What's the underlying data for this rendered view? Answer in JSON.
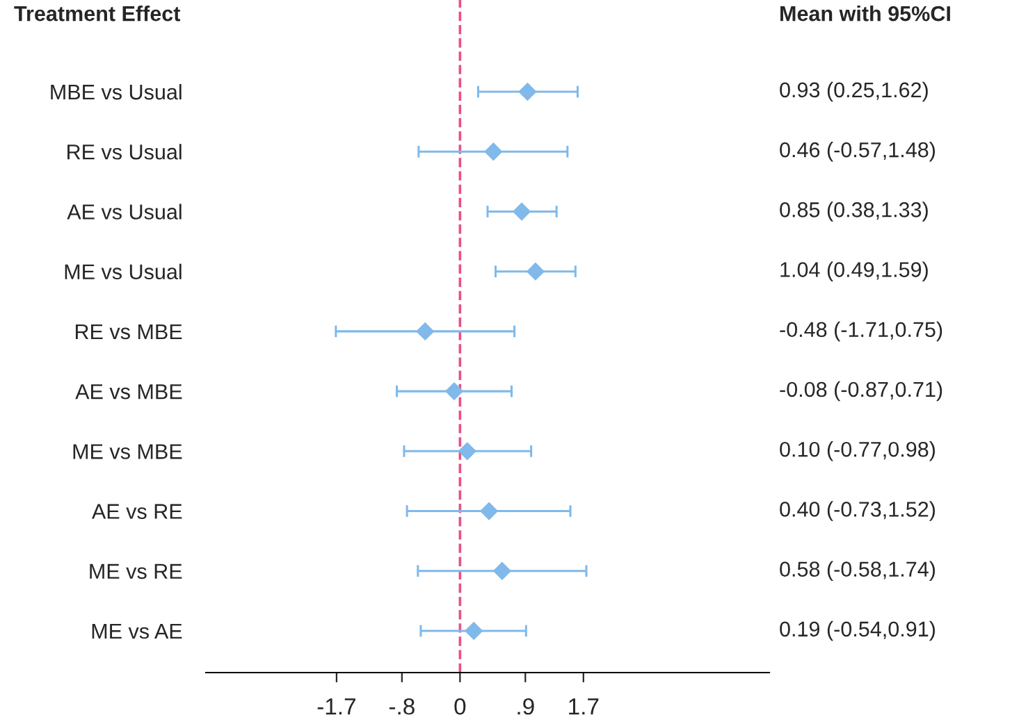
{
  "chart_data": {
    "type": "scatter",
    "ylabel": "Treatment Effect",
    "annotations": [
      "Mean with 95%CI"
    ],
    "categories": [
      "MBE vs Usual",
      "RE vs Usual",
      "AE vs Usual",
      "ME vs Usual",
      "RE vs MBE",
      "AE vs MBE",
      "ME vs MBE",
      "AE vs RE",
      "ME vs RE",
      "ME vs AE"
    ],
    "orientation": "horizontal",
    "series": [
      {
        "color": "#80b9ea",
        "values": [
          0.93,
          0.46,
          0.85,
          1.04,
          -0.48,
          -0.08,
          0.1,
          0.4,
          0.58,
          0.19
        ],
        "errors": [
          [
            0.25,
            1.62
          ],
          [
            -0.57,
            1.48
          ],
          [
            0.38,
            1.33
          ],
          [
            0.49,
            1.59
          ],
          [
            -1.71,
            0.75
          ],
          [
            -0.87,
            0.71
          ],
          [
            -0.77,
            0.98
          ],
          [
            -0.73,
            1.52
          ],
          [
            -0.58,
            1.74
          ],
          [
            -0.54,
            0.91
          ]
        ],
        "value_labels": [
          "0.93 (0.25,1.62)",
          "0.46 (-0.57,1.48)",
          "0.85 (0.38,1.33)",
          "1.04 (0.49,1.59)",
          "-0.48 (-1.71,0.75)",
          "-0.08 (-0.87,0.71)",
          "0.10 (-0.77,0.98)",
          "0.40 (-0.73,1.52)",
          "0.58 (-0.58,1.74)",
          "0.19 (-0.54,0.91)"
        ]
      }
    ],
    "marker": "diamond",
    "xlim": [
      -3.5,
      4.26
    ],
    "xticks": [
      -1.7,
      {
        "value": -0.8,
        "label": "-.8"
      },
      0,
      {
        "value": 0.9,
        "label": ".9"
      },
      1.7
    ],
    "ref_lines": [
      {
        "axis": "x",
        "value": 0,
        "color": "#e8508a",
        "line_style": "dashed"
      }
    ],
    "grid": false
  }
}
